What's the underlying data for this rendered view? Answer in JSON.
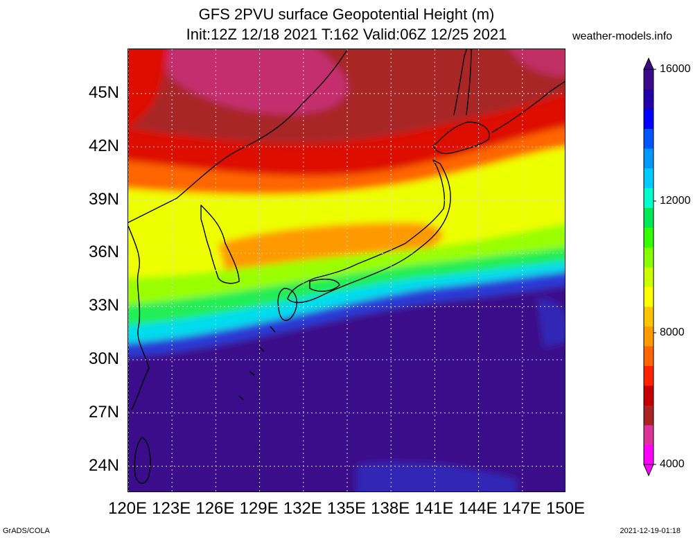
{
  "title": {
    "line1": "GFS 2PVU surface Geopotential Height (m)",
    "line2": "Init:12Z 12/18 2021 T:162 Valid:06Z 12/25 2021"
  },
  "site": "weather-models.info",
  "lat_labels": [
    "45N",
    "42N",
    "39N",
    "36N",
    "33N",
    "30N",
    "27N",
    "24N"
  ],
  "lat_values": [
    45,
    42,
    39,
    36,
    33,
    30,
    27,
    24
  ],
  "lon_labels": [
    "120E",
    "123E",
    "126E",
    "129E",
    "132E",
    "135E",
    "138E",
    "141E",
    "144E",
    "147E",
    "150E"
  ],
  "lon_values": [
    120,
    123,
    126,
    129,
    132,
    135,
    138,
    141,
    144,
    147,
    150
  ],
  "map_extent": {
    "lon": [
      120,
      150
    ],
    "lat": [
      22.5,
      47.5
    ]
  },
  "colorbar": {
    "range": [
      4000,
      16000
    ],
    "labels": [
      "16000",
      "12000",
      "8000",
      "4000"
    ],
    "label_values": [
      16000,
      12000,
      8000,
      4000
    ],
    "colors": [
      "#ff00ff",
      "#dd3399",
      "#aa2222",
      "#c40000",
      "#ff2200",
      "#ff6600",
      "#ff9900",
      "#ffc400",
      "#ffff00",
      "#ccff00",
      "#88ff00",
      "#33ff00",
      "#00e855",
      "#00ffcc",
      "#00ccff",
      "#0099ff",
      "#0055ff",
      "#0000ff",
      "#2200aa",
      "#3b0a8a"
    ]
  },
  "colors": {
    "tropical_high": "#3b0a8a",
    "high_blue": "#2a3bd6",
    "jet_green": "#22ee55",
    "mid_yellow": "#eeff00",
    "mid_orange": "#ff9900",
    "low_red": "#dd1100",
    "polar_low": "#a82828",
    "polar_magenta": "#d0308c",
    "coastline": "#000000",
    "grid": "#dddddd"
  },
  "footer": {
    "left": "GrADS/COLA",
    "right": "2021-12-19-01:18"
  }
}
